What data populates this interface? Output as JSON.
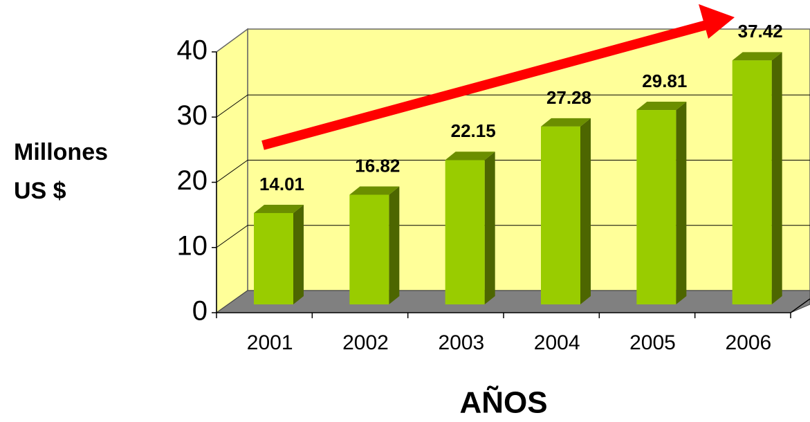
{
  "chart_data": {
    "type": "bar3d",
    "categories": [
      "2001",
      "2002",
      "2003",
      "2004",
      "2005",
      "2006"
    ],
    "values": [
      14.01,
      16.82,
      22.15,
      27.28,
      29.81,
      37.42
    ],
    "ylim": [
      0,
      40
    ],
    "yticks": [
      0,
      10,
      20,
      30,
      40
    ],
    "grid": true,
    "ylabel": [
      "Millones",
      "US $"
    ],
    "xlabel": "AÑOS",
    "color": "#99cc00"
  }
}
